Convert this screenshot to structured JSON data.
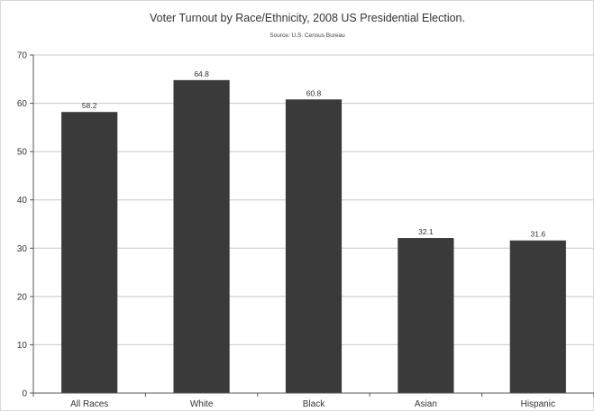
{
  "chart_data": {
    "type": "bar",
    "title": "Voter Turnout by Race/Ethnicity, 2008 US Presidential Election.",
    "subtitle": "Source: U.S. Census Bureau",
    "xlabel": "",
    "ylabel": "",
    "categories": [
      "All Races",
      "White",
      "Black",
      "Asian",
      "Hispanic"
    ],
    "values": [
      58.2,
      64.8,
      60.8,
      32.1,
      31.6
    ],
    "value_labels": [
      "58.2",
      "64.8",
      "60.8",
      "32.1",
      "31.6"
    ],
    "ylim": [
      0,
      70
    ],
    "yticks": [
      0,
      10,
      20,
      30,
      40,
      50,
      60,
      70
    ],
    "grid": true,
    "legend": "none",
    "bar_color": "#3a3a3a"
  }
}
